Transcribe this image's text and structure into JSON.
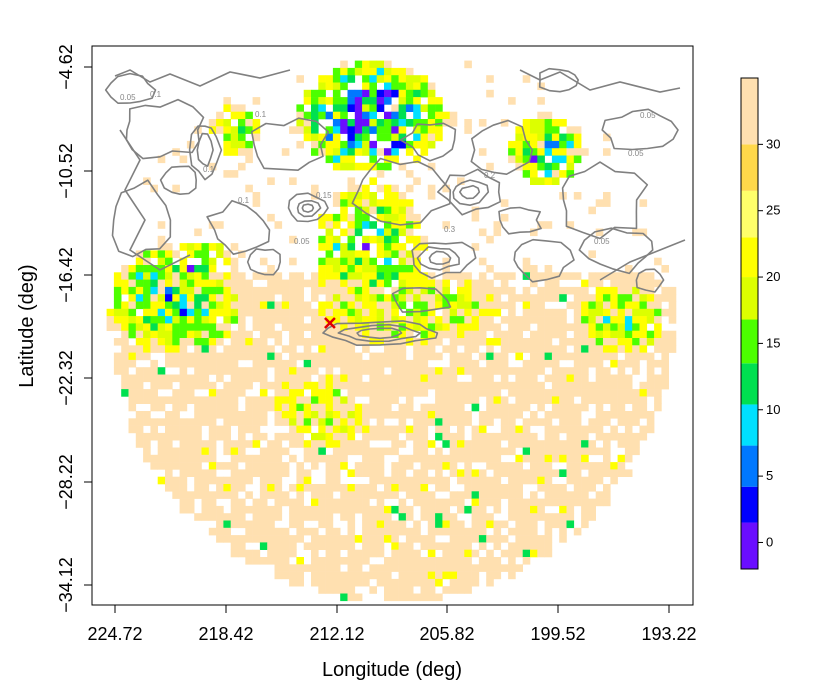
{
  "chart_data": {
    "type": "heatmap",
    "xlabel": "Longitude (deg)",
    "ylabel": "Latitude (deg)",
    "x_reversed": true,
    "xlim": [
      224.72,
      193.22
    ],
    "ylim": [
      -34.12,
      -4.62
    ],
    "x_ticks": [
      "224.72",
      "218.42",
      "212.12",
      "205.82",
      "199.52",
      "193.22"
    ],
    "y_ticks": [
      "-4.62",
      "-10.52",
      "-16.42",
      "-22.32",
      "-28.22",
      "-34.12"
    ],
    "colorbar": {
      "range": [
        -2,
        35
      ],
      "ticks": [
        "0",
        "5",
        "10",
        "15",
        "20",
        "25",
        "30"
      ],
      "colors": [
        "#6a0dff",
        "#0000ff",
        "#0078ff",
        "#00e0ff",
        "#00e050",
        "#4cff00",
        "#dcff00",
        "#ffff00",
        "#ffff6a",
        "#ffd84a",
        "#ffe0b0"
      ]
    },
    "contour_levels": [
      "0.05",
      "0.1",
      "0.15",
      "0.2",
      "0.3",
      "0.4"
    ],
    "contour_color": "#808080",
    "marker": {
      "lon": 212.5,
      "lat": -19.2,
      "symbol": "x",
      "color": "#e00000"
    },
    "background_value_color": "#ffe0b0"
  }
}
